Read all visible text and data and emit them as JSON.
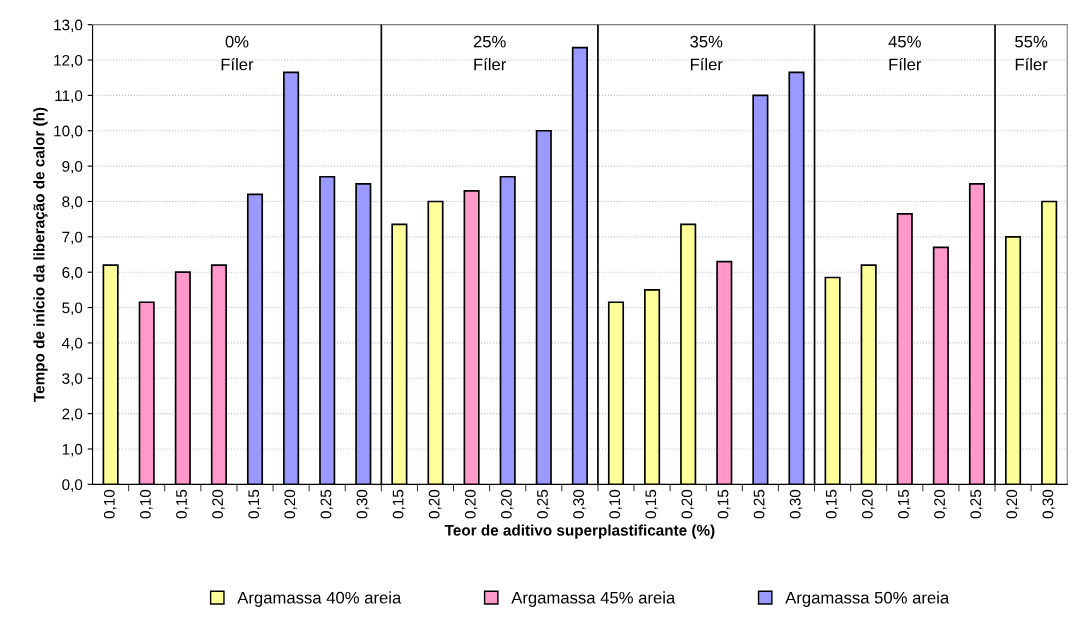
{
  "chart_data": {
    "type": "bar",
    "xlabel": "Teor de aditivo superplastificante (%)",
    "ylabel": "Tempo de início da liberação de calor (h)",
    "categories": [
      "0,10",
      "0,10",
      "0,15",
      "0,20",
      "0,15",
      "0,20",
      "0,25",
      "0,30",
      "0,15",
      "0,20",
      "0,20",
      "0,20",
      "0,25",
      "0,30",
      "0,10",
      "0,15",
      "0,20",
      "0,15",
      "0,25",
      "0,30",
      "0,15",
      "0,20",
      "0,15",
      "0,20",
      "0,25",
      "0,20",
      "0,30"
    ],
    "series": [
      {
        "name": "Argamassa 40% areia",
        "color": "#ffff99",
        "values": [
          6.2,
          null,
          null,
          null,
          null,
          null,
          null,
          null,
          7.35,
          8.0,
          null,
          null,
          null,
          null,
          5.15,
          5.5,
          7.35,
          null,
          null,
          null,
          5.85,
          6.2,
          null,
          null,
          null,
          7.0,
          8.0
        ]
      },
      {
        "name": "Argamassa 45% areia",
        "color": "#ff99cc",
        "values": [
          null,
          5.15,
          6.0,
          6.2,
          null,
          null,
          null,
          null,
          null,
          null,
          8.3,
          null,
          null,
          null,
          null,
          null,
          null,
          6.3,
          null,
          null,
          null,
          null,
          7.65,
          6.7,
          8.5,
          null,
          null
        ]
      },
      {
        "name": "Argamassa 50% areia",
        "color": "#9999ff",
        "values": [
          null,
          null,
          null,
          null,
          8.2,
          11.65,
          8.7,
          8.5,
          null,
          null,
          null,
          8.7,
          10.0,
          12.35,
          null,
          null,
          null,
          null,
          11.0,
          11.65,
          null,
          null,
          null,
          null,
          null,
          null,
          null
        ]
      }
    ],
    "ylim": [
      0,
      13
    ],
    "yticks": [
      {
        "value": 0,
        "label": "0,0"
      },
      {
        "value": 1,
        "label": "1,0"
      },
      {
        "value": 2,
        "label": "2,0"
      },
      {
        "value": 3,
        "label": "3,0"
      },
      {
        "value": 4,
        "label": "4,0"
      },
      {
        "value": 5,
        "label": "5,0"
      },
      {
        "value": 6,
        "label": "6,0"
      },
      {
        "value": 7,
        "label": "7,0"
      },
      {
        "value": 8,
        "label": "8,0"
      },
      {
        "value": 9,
        "label": "9,0"
      },
      {
        "value": 10,
        "label": "10,0"
      },
      {
        "value": 11,
        "label": "11,0"
      },
      {
        "value": 12,
        "label": "12,0"
      },
      {
        "value": 13,
        "label": "13,0"
      }
    ],
    "annotations": [
      "0%\nFíler",
      "25%\nFíler",
      "35%\nFíler",
      "45%\nFíler",
      "55%\nFíler"
    ],
    "grid": "y",
    "legend": "bottom"
  }
}
